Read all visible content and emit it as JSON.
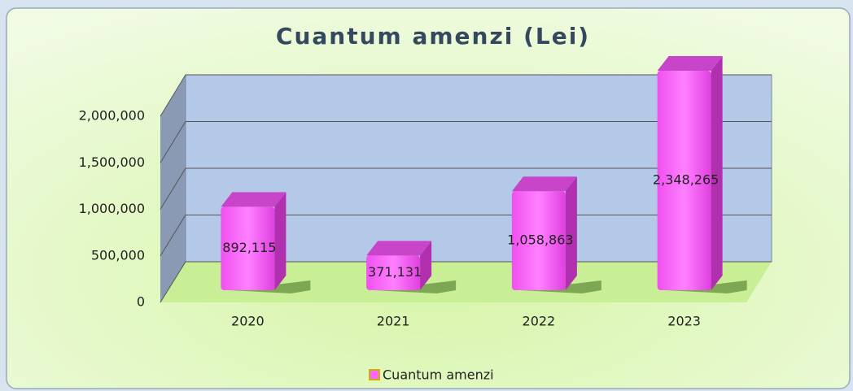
{
  "chart_data": {
    "type": "bar3d",
    "title": "Cuantum amenzi (Lei)",
    "categories": [
      "2020",
      "2021",
      "2022",
      "2023"
    ],
    "series": [
      {
        "name": "Cuantum amenzi",
        "color": "#ff66ff",
        "values": [
          892115,
          371131,
          1058863,
          2348265
        ],
        "value_labels": [
          "892,115",
          "371,131",
          "1,058,863",
          "2,348,265"
        ]
      }
    ],
    "ylim": [
      0,
      2000000
    ],
    "yticks": [
      0,
      {
        "value": 500000,
        "label": "500,000"
      },
      {
        "value": 1000000,
        "label": "1,000,000"
      },
      {
        "value": 1500000,
        "label": "1,500,000"
      },
      {
        "value": 2000000,
        "label": "2,000,000"
      }
    ],
    "grid": true,
    "legend": "bottom"
  }
}
